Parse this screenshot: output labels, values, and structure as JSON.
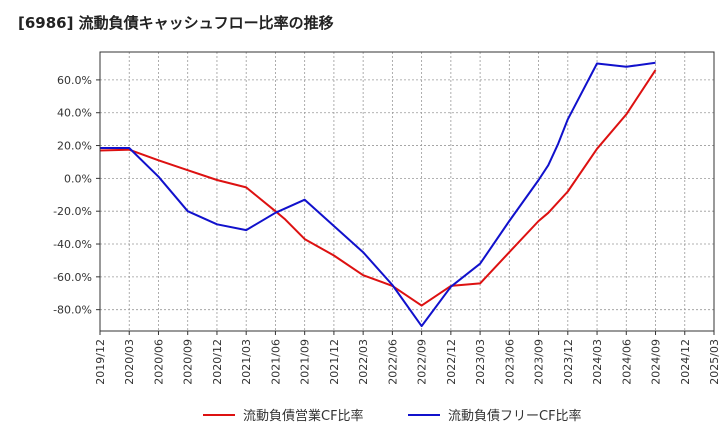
{
  "chart_data": {
    "type": "line",
    "title": "[6986]  流動負債キャッシュフロー比率の推移",
    "xlabel": "",
    "ylabel": "",
    "x_ticks": [
      "2019/12",
      "2020/03",
      "2020/06",
      "2020/09",
      "2020/12",
      "2021/03",
      "2021/06",
      "2021/09",
      "2021/12",
      "2022/03",
      "2022/06",
      "2022/09",
      "2022/12",
      "2023/03",
      "2023/06",
      "2023/09",
      "2023/12",
      "2024/03",
      "2024/06",
      "2024/09",
      "2024/12",
      "2025/03"
    ],
    "y_ticks": [
      60,
      40,
      20,
      0,
      -20,
      -40,
      -60,
      -80
    ],
    "y_tick_format": "%",
    "ylim": [
      -93,
      77
    ],
    "grid": true,
    "legend_position": "bottom",
    "series": [
      {
        "name": "流動負債営業CF比率",
        "color": "#dd1111",
        "x": [
          "2019/12",
          "2020/03",
          "2020/06",
          "2020/09",
          "2020/12",
          "2021/03",
          "2021/06",
          "2021/07",
          "2021/09",
          "2021/12",
          "2022/03",
          "2022/06",
          "2022/09",
          "2022/12",
          "2023/03",
          "2023/06",
          "2023/09",
          "2023/10",
          "2023/12",
          "2024/03",
          "2024/06",
          "2024/09"
        ],
        "values": [
          17.0,
          17.5,
          11.0,
          5.0,
          -1.0,
          -5.5,
          -20.0,
          -25.0,
          -37.0,
          -47.0,
          -59.0,
          -65.5,
          -77.5,
          -65.5,
          -64.0,
          -45.0,
          -26.0,
          -21.0,
          -8.0,
          18.0,
          39.0,
          66.0
        ]
      },
      {
        "name": "流動負債フリーCF比率",
        "color": "#1111cc",
        "x": [
          "2019/12",
          "2020/03",
          "2020/06",
          "2020/08",
          "2020/09",
          "2020/12",
          "2021/03",
          "2021/06",
          "2021/09",
          "2021/12",
          "2022/03",
          "2022/06",
          "2022/09",
          "2022/12",
          "2023/03",
          "2023/06",
          "2023/09",
          "2023/10",
          "2023/11",
          "2023/12",
          "2024/03",
          "2024/06",
          "2024/09"
        ],
        "values": [
          18.5,
          18.5,
          1.0,
          -13.0,
          -20.0,
          -28.0,
          -31.5,
          -21.0,
          -13.0,
          -29.0,
          -45.0,
          -65.0,
          -90.0,
          -66.0,
          -52.0,
          -26.0,
          -1.0,
          8.0,
          21.0,
          36.0,
          70.0,
          68.0,
          70.5
        ]
      }
    ]
  }
}
